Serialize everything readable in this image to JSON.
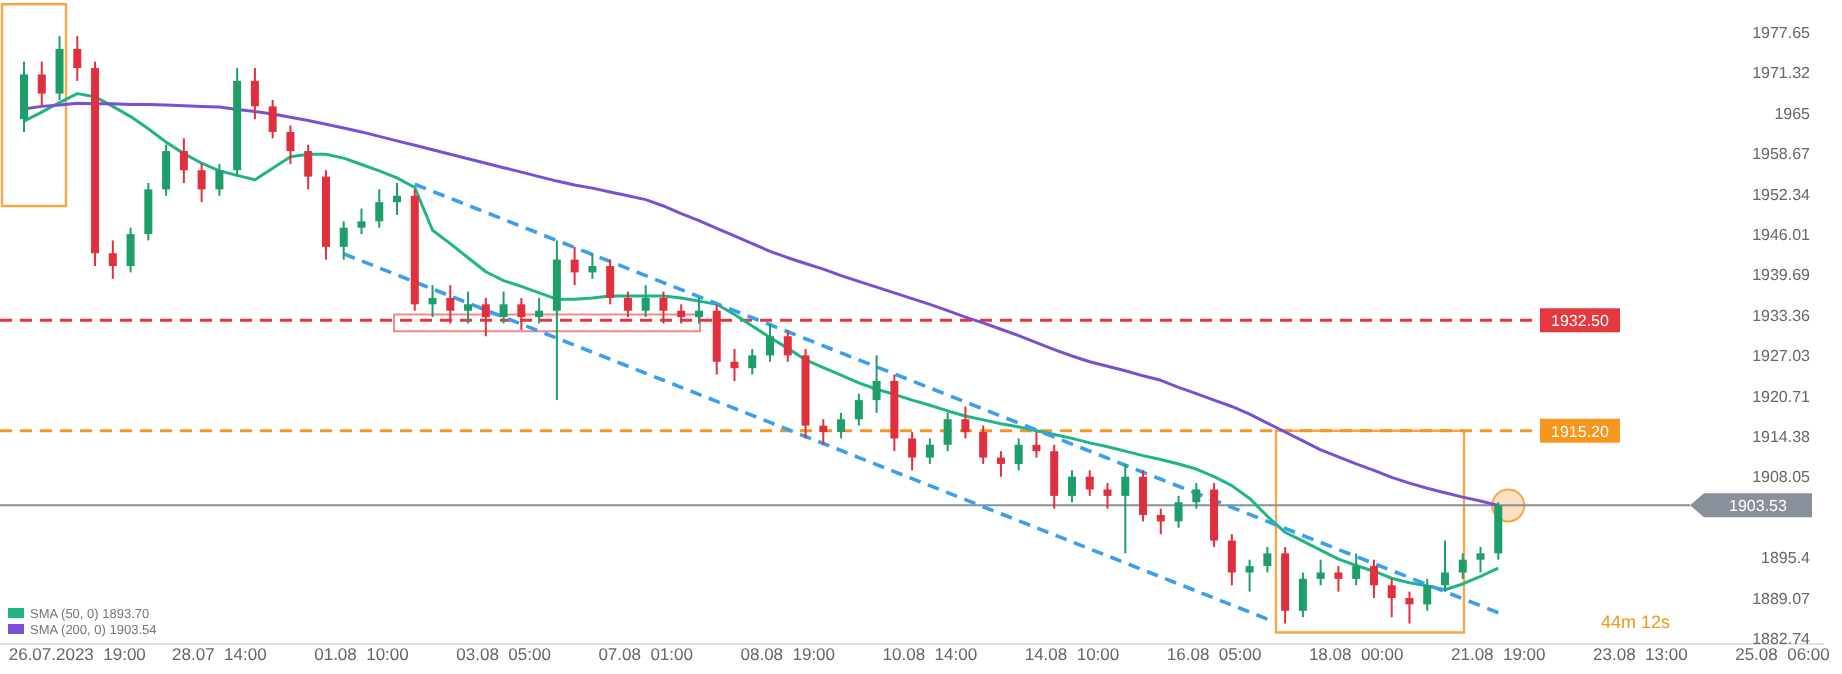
{
  "chart_data": {
    "type": "candlestick",
    "categories": [
      null,
      null,
      null,
      "26.07.2023  19:00",
      null,
      null,
      null,
      null,
      null,
      null,
      null,
      "28.07  14:00",
      null,
      null,
      null,
      null,
      null,
      null,
      null,
      "01.08  10:00",
      null,
      null,
      null,
      null,
      null,
      null,
      null,
      "03.08  05:00",
      null,
      null,
      null,
      null,
      null,
      null,
      null,
      "07.08  01:00",
      null,
      null,
      null,
      null,
      null,
      null,
      null,
      "08.08  19:00",
      null,
      null,
      null,
      null,
      null,
      null,
      null,
      "10.08  14:00",
      null,
      null,
      null,
      null,
      null,
      null,
      null,
      "14.08  10:00",
      null,
      null,
      null,
      null,
      null,
      null,
      null,
      "16.08  05:00",
      null,
      null,
      null,
      null,
      null,
      null,
      null,
      "18.08  00:00",
      null,
      null,
      null,
      null,
      null,
      null,
      null,
      "21.08  19:00",
      null,
      null,
      null,
      null,
      null,
      null,
      null,
      "23.08  13:00",
      null,
      null,
      null,
      null,
      null,
      null,
      null,
      "25.08  06:00",
      null,
      null
    ],
    "ohlc": [
      [
        1964,
        1973,
        1962,
        1971
      ],
      [
        1971,
        1973,
        1966,
        1968
      ],
      [
        1968,
        1977,
        1967,
        1975
      ],
      [
        1975,
        1977,
        1970,
        1972
      ],
      [
        1972,
        1973,
        1941,
        1943
      ],
      [
        1943,
        1945,
        1939,
        1941
      ],
      [
        1941,
        1947,
        1940,
        1946
      ],
      [
        1946,
        1954,
        1945,
        1953
      ],
      [
        1953,
        1960,
        1952,
        1959
      ],
      [
        1959,
        1961,
        1954,
        1956
      ],
      [
        1956,
        1957,
        1951,
        1953
      ],
      [
        1953,
        1957,
        1952,
        1956
      ],
      [
        1956,
        1972,
        1955,
        1970
      ],
      [
        1970,
        1972,
        1964,
        1966
      ],
      [
        1966,
        1967,
        1961,
        1962
      ],
      [
        1962,
        1963,
        1957,
        1959
      ],
      [
        1959,
        1960,
        1953,
        1955
      ],
      [
        1955,
        1956,
        1942,
        1944
      ],
      [
        1944,
        1948,
        1942,
        1947
      ],
      [
        1947,
        1950,
        1946,
        1948
      ],
      [
        1948,
        1953,
        1947,
        1951
      ],
      [
        1951,
        1954,
        1949,
        1952
      ],
      [
        1952,
        1953,
        1934,
        1935
      ],
      [
        1935,
        1938,
        1933,
        1936
      ],
      [
        1936,
        1938,
        1932,
        1934
      ],
      [
        1934,
        1937,
        1932,
        1935
      ],
      [
        1935,
        1936,
        1930,
        1933
      ],
      [
        1933,
        1937,
        1932,
        1935
      ],
      [
        1935,
        1936,
        1931,
        1933
      ],
      [
        1933,
        1936,
        1932,
        1934
      ],
      [
        1934,
        1945,
        1920,
        1942
      ],
      [
        1942,
        1944,
        1938,
        1940
      ],
      [
        1940,
        1943,
        1939,
        1941
      ],
      [
        1941,
        1942,
        1935,
        1936
      ],
      [
        1936,
        1937,
        1933,
        1934
      ],
      [
        1934,
        1938,
        1933,
        1936
      ],
      [
        1936,
        1937,
        1932,
        1934
      ],
      [
        1934,
        1935,
        1932,
        1933
      ],
      [
        1933,
        1936,
        1932,
        1934
      ],
      [
        1934,
        1935,
        1924,
        1926
      ],
      [
        1926,
        1928,
        1923,
        1925
      ],
      [
        1925,
        1928,
        1924,
        1927
      ],
      [
        1927,
        1932,
        1926,
        1930
      ],
      [
        1930,
        1931,
        1926,
        1927
      ],
      [
        1927,
        1928,
        1914,
        1916
      ],
      [
        1916,
        1917,
        1913,
        1915
      ],
      [
        1915,
        1918,
        1914,
        1917
      ],
      [
        1917,
        1921,
        1916,
        1920
      ],
      [
        1920,
        1927,
        1918,
        1923
      ],
      [
        1923,
        1924,
        1912,
        1914
      ],
      [
        1914,
        1915,
        1909,
        1911
      ],
      [
        1911,
        1914,
        1910,
        1913
      ],
      [
        1913,
        1918,
        1912,
        1917
      ],
      [
        1917,
        1919,
        1914,
        1915
      ],
      [
        1915,
        1916,
        1910,
        1911
      ],
      [
        1911,
        1912,
        1908,
        1910
      ],
      [
        1910,
        1914,
        1909,
        1913
      ],
      [
        1913,
        1915,
        1911,
        1912
      ],
      [
        1912,
        1913,
        1903,
        1905
      ],
      [
        1905,
        1909,
        1904,
        1908
      ],
      [
        1908,
        1909,
        1905,
        1906
      ],
      [
        1906,
        1907,
        1903,
        1905
      ],
      [
        1905,
        1910,
        1896,
        1908
      ],
      [
        1908,
        1909,
        1901,
        1902
      ],
      [
        1902,
        1903,
        1899,
        1901
      ],
      [
        1901,
        1905,
        1900,
        1904
      ],
      [
        1904,
        1907,
        1903,
        1906
      ],
      [
        1906,
        1907,
        1897,
        1898
      ],
      [
        1898,
        1899,
        1891,
        1893
      ],
      [
        1893,
        1895,
        1890,
        1894
      ],
      [
        1894,
        1897,
        1893,
        1896
      ],
      [
        1896,
        1897,
        1885,
        1887
      ],
      [
        1887,
        1893,
        1886,
        1892
      ],
      [
        1892,
        1895,
        1891,
        1893
      ],
      [
        1893,
        1894,
        1890,
        1892
      ],
      [
        1892,
        1896,
        1891,
        1894
      ],
      [
        1894,
        1895,
        1889,
        1891
      ],
      [
        1891,
        1892,
        1886,
        1889
      ],
      [
        1889,
        1890,
        1885,
        1888
      ],
      [
        1888,
        1892,
        1887,
        1891
      ],
      [
        1891,
        1898,
        1890,
        1893
      ],
      [
        1893,
        1896,
        1892,
        1895
      ],
      [
        1895,
        1897,
        1893,
        1896
      ],
      [
        1896,
        1904,
        1895,
        1903.5
      ],
      null,
      null,
      null,
      null,
      null,
      null,
      null,
      null,
      null,
      null,
      null,
      null,
      null,
      null,
      null,
      null,
      null,
      null
    ],
    "series": [
      {
        "type": "line",
        "name": "SMA (50, 0) 1893.70",
        "color": "#1fb585",
        "values": [
          1963.7,
          1965.1,
          1966.6,
          1968,
          1967.5,
          1966,
          1964.4,
          1962.5,
          1960.4,
          1958.6,
          1957.1,
          1955.9,
          1955.2,
          1954.5,
          1956.3,
          1958.1,
          1958.5,
          1958.5,
          1957.9,
          1956.9,
          1955.9,
          1954.8,
          1953.3,
          1946.6,
          1944.5,
          1942.3,
          1940.1,
          1938.7,
          1937.8,
          1936.8,
          1935.8,
          1935.8,
          1936,
          1936.3,
          1936.3,
          1936.3,
          1936.3,
          1936,
          1935.5,
          1935,
          1933.4,
          1931.6,
          1929.8,
          1928.1,
          1926.3,
          1925.1,
          1923.9,
          1922.7,
          1921.7,
          1920.9,
          1920,
          1919.2,
          1918.3,
          1917.5,
          1916.9,
          1916.3,
          1915.8,
          1915.2,
          1914.6,
          1914,
          1913.3,
          1912.7,
          1912,
          1911.3,
          1910.7,
          1910,
          1909.2,
          1908,
          1906.6,
          1904.6,
          1901.8,
          1899.3,
          1897.9,
          1896.5,
          1895.1,
          1894.1,
          1893.2,
          1892.1,
          1891.4,
          1890.9,
          1890.3,
          1891.2,
          1892.4,
          1893.7,
          null,
          null,
          null,
          null,
          null,
          null,
          null,
          null,
          null,
          null,
          null,
          null,
          null,
          null,
          null,
          null,
          null,
          null
        ]
      },
      {
        "type": "line",
        "name": "SMA (200, 0) 1903.54",
        "color": "#7a50d2",
        "values": [
          1965.6,
          1966,
          1966.2,
          1966.5,
          1966.4,
          1966.4,
          1966.3,
          1966.3,
          1966.2,
          1966.1,
          1966,
          1965.9,
          1965.5,
          1965.2,
          1964.8,
          1964.3,
          1963.8,
          1963.2,
          1962.6,
          1962,
          1961.3,
          1960.6,
          1959.9,
          1959.2,
          1958.5,
          1957.8,
          1957.1,
          1956.4,
          1955.7,
          1955,
          1954.3,
          1953.7,
          1953.2,
          1952.6,
          1952,
          1951.4,
          1950.4,
          1949.2,
          1948.1,
          1946.9,
          1945.7,
          1944.5,
          1943.3,
          1942.3,
          1941.4,
          1940.5,
          1939.5,
          1938.6,
          1937.7,
          1936.8,
          1935.9,
          1935,
          1934,
          1933,
          1932.1,
          1931.1,
          1930.1,
          1929,
          1927.9,
          1926.9,
          1926,
          1925.3,
          1924.6,
          1923.8,
          1923.1,
          1922,
          1921,
          1920,
          1919,
          1917.8,
          1916.4,
          1915,
          1913.6,
          1912.2,
          1911.1,
          1910,
          1909,
          1907.9,
          1907,
          1906.2,
          1905.5,
          1904.8,
          1904.2,
          1903.5,
          null,
          null,
          null,
          null,
          null,
          null,
          null,
          null,
          null,
          null,
          null,
          null,
          null,
          null,
          null,
          null,
          null,
          null
        ]
      },
      {
        "type": "line",
        "color": "#3b9ff0",
        "line_style": "dashed",
        "values": [
          null,
          null,
          null,
          null,
          null,
          null,
          null,
          null,
          null,
          null,
          null,
          null,
          null,
          null,
          null,
          null,
          null,
          null,
          null,
          null,
          null,
          null,
          1953.8,
          1952.7,
          1951.6,
          1950.5,
          1949.4,
          1948.3,
          1947.2,
          1946.1,
          1945,
          1943.9,
          1942.8,
          1941.7,
          1940.6,
          1939.5,
          1938.4,
          1937.3,
          1936.2,
          1935.1,
          1934,
          1932.9,
          1931.8,
          1930.7,
          1929.6,
          1928.5,
          1927.4,
          1926.3,
          1925.2,
          1924.1,
          1923,
          1921.9,
          1920.8,
          1919.7,
          1918.6,
          1917.5,
          1916.4,
          1915.3,
          1914.2,
          1913.1,
          1912,
          1910.9,
          1909.8,
          1908.7,
          1907.6,
          1906.5,
          1905.4,
          1904.3,
          1903.2,
          1902.1,
          1901,
          1899.9,
          1898.8,
          1897.7,
          1896.6,
          1895.5,
          1894.4,
          1893.3,
          1892.2,
          1891.1,
          1890,
          1888.9,
          1887.8,
          1886.7,
          null,
          null,
          null,
          null,
          null,
          null,
          null,
          null,
          null,
          null,
          null,
          null,
          null,
          null,
          null,
          null,
          null,
          null
        ]
      },
      {
        "type": "line",
        "color": "#3b9ff0",
        "line_style": "dashed",
        "values": [
          null,
          null,
          null,
          null,
          null,
          null,
          null,
          null,
          null,
          null,
          null,
          null,
          null,
          null,
          null,
          null,
          null,
          null,
          1942.9,
          1941.8,
          1940.7,
          1939.6,
          1938.5,
          1937.4,
          1936.3,
          1935.2,
          1934.1,
          1933,
          1931.9,
          1930.8,
          1929.7,
          1928.6,
          1927.5,
          1926.4,
          1925.3,
          1924.2,
          1923.1,
          1922,
          1920.9,
          1919.8,
          1918.7,
          1917.6,
          1916.5,
          1915.4,
          1914.3,
          1913.2,
          1912.1,
          1911,
          1909.9,
          1908.8,
          1907.7,
          1906.6,
          1905.5,
          1904.4,
          1903.3,
          1902.2,
          1901.1,
          1900,
          1898.9,
          1897.8,
          1896.7,
          1895.6,
          1894.5,
          1893.4,
          1892.3,
          1891.2,
          1890.1,
          1889,
          1887.9,
          1886.8,
          1885.7,
          null,
          null,
          null,
          null,
          null,
          null,
          null,
          null,
          null,
          null,
          null,
          null,
          null,
          null,
          null,
          null,
          null,
          null,
          null,
          null,
          null,
          null,
          null,
          null,
          null,
          null,
          null,
          null,
          null,
          null,
          null
        ]
      }
    ],
    "ylim": [
      1881.8,
      1982.66
    ],
    "yticks": [
      1882.74,
      1889.07,
      1895.4,
      1908.05,
      1914.38,
      1920.71,
      1927.03,
      1933.36,
      1939.69,
      1946.01,
      1952.34,
      1958.67,
      1965.0,
      1971.32,
      1977.65
    ],
    "ref_lines": [
      {
        "axis": "y",
        "value": 1932.5,
        "label": "1932.50",
        "color": "#e5393f",
        "line_style": "dashed"
      },
      {
        "axis": "y",
        "value": 1915.2,
        "label": "1915.20",
        "color": "#f5961d",
        "line_style": "dashed"
      },
      {
        "axis": "y",
        "value": 1903.53,
        "label": "1903.53",
        "color": "#8a9099",
        "line_style": "solid"
      }
    ],
    "annotations": [
      "44m 12s"
    ],
    "legend": "bottom left",
    "grid": false
  }
}
